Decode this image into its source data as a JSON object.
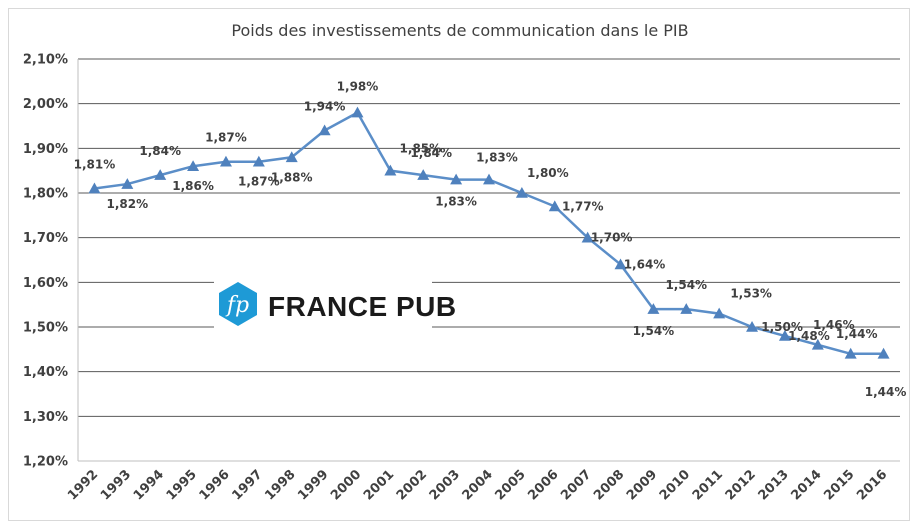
{
  "chart_data": {
    "type": "line",
    "title": "Poids des investissements de communication dans le PIB",
    "categories": [
      "1992",
      "1993",
      "1994",
      "1995",
      "1996",
      "1997",
      "1998",
      "1999",
      "2000",
      "2001",
      "2002",
      "2003",
      "2004",
      "2005",
      "2006",
      "2007",
      "2008",
      "2009",
      "2010",
      "2011",
      "2012",
      "2013",
      "2014",
      "2015",
      "2016"
    ],
    "values": [
      1.81,
      1.82,
      1.84,
      1.86,
      1.87,
      1.87,
      1.88,
      1.94,
      1.98,
      1.85,
      1.84,
      1.83,
      1.83,
      1.8,
      1.77,
      1.7,
      1.64,
      1.54,
      1.54,
      1.53,
      1.5,
      1.48,
      1.46,
      1.44,
      1.44
    ],
    "labels": [
      "1,81%",
      "1,82%",
      "1,84%",
      "1,86%",
      "1,87%",
      "1,87%",
      "1,88%",
      "1,94%",
      "1,98%",
      "1,85%",
      "1,84%",
      "1,83%",
      "1,83%",
      "1,80%",
      "1,77%",
      "1,70%",
      "1,64%",
      "1,54%",
      "1,54%",
      "1,53%",
      "1,50%",
      "1,48%",
      "1,46%",
      "1,44%",
      "1,44%"
    ],
    "y_ticks": [
      "1,20%",
      "1,30%",
      "1,40%",
      "1,50%",
      "1,60%",
      "1,70%",
      "1,80%",
      "1,90%",
      "2,00%",
      "2,10%"
    ],
    "ylim": [
      1.2,
      2.1
    ],
    "y_step": 0.1,
    "grid": true,
    "legend": "none",
    "marker": "triangle",
    "line_color": "#5b8ec8",
    "marker_color": "#4f81bd"
  },
  "logo": {
    "mark": "fp",
    "text": "FRANCE PUB",
    "mark_color": "#1e9ad6"
  }
}
